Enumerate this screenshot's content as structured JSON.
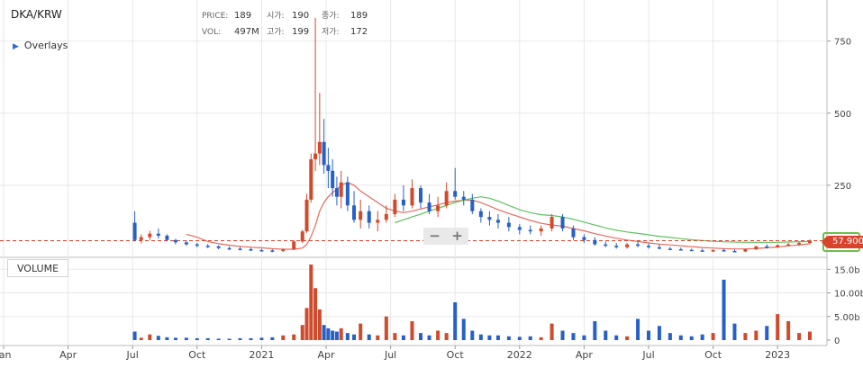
{
  "header": {
    "pair": "DKA/KRW",
    "overlays_label": "Overlays",
    "info": {
      "price_label": "PRICE:",
      "price": "189",
      "vol_label": "VOL:",
      "vol": "497M",
      "open_label": "시가:",
      "open": "190",
      "high_label": "고가:",
      "high": "199",
      "close_label": "종가:",
      "close": "189",
      "low_label": "저가:",
      "low": "172"
    }
  },
  "controls": {
    "zoom_out": "−",
    "zoom_in": "+"
  },
  "volume_panel": {
    "label": "VOLUME"
  },
  "current_price": {
    "label": "57.900",
    "value": 57.9
  },
  "colors": {
    "up": "#d04a2c",
    "down": "#2760c6",
    "ma_short": "#e86a5c",
    "ma_long": "#5cc45c",
    "last_price_line": "#d9432c",
    "grid": "#e8e8e8",
    "tag_border": "#6cc04a"
  },
  "chart_data": {
    "type": "candlestick",
    "price_axis": {
      "ticks": [
        250,
        500,
        750
      ],
      "labels": [
        "250",
        "500",
        "750"
      ],
      "range": [
        0,
        830
      ]
    },
    "volume_axis": {
      "ticks": [
        0,
        5,
        10,
        15
      ],
      "labels": [
        "0",
        "5.00b",
        "10.00b",
        "15.0b"
      ],
      "range": [
        0,
        16
      ],
      "unit": "b"
    },
    "time_axis": {
      "labels": [
        "Jan",
        "Apr",
        "Jul",
        "Oct",
        "2021",
        "Apr",
        "Jul",
        "Oct",
        "2022",
        "Apr",
        "Jul",
        "Oct",
        "2023"
      ],
      "months_from_jan_2020": [
        0,
        3,
        6,
        9,
        12,
        15,
        18,
        21,
        24,
        27,
        30,
        33,
        36
      ]
    },
    "ohlc_months_from_jan_2020": [
      6.1,
      6.4,
      6.8,
      7.2,
      7.6,
      8.0,
      8.5,
      9,
      9.5,
      10,
      10.5,
      11,
      11.5,
      12,
      12.5,
      13,
      13.5,
      13.9,
      14.1,
      14.3,
      14.5,
      14.7,
      14.9,
      15.1,
      15.3,
      15.5,
      15.7,
      16,
      16.3,
      16.6,
      17,
      17.4,
      17.8,
      18.2,
      18.6,
      19,
      19.4,
      19.8,
      20.2,
      20.6,
      21,
      21.4,
      21.8,
      22.2,
      22.6,
      23,
      23.5,
      24,
      24.5,
      25,
      25.5,
      26,
      26.5,
      27,
      27.5,
      28,
      28.5,
      29,
      29.5,
      30,
      30.5,
      31,
      31.5,
      32,
      32.5,
      33,
      33.5,
      34,
      34.5,
      35,
      35.5,
      36,
      36.5,
      37,
      37.5
    ],
    "ohlc": [
      [
        120,
        160,
        55,
        60
      ],
      [
        60,
        80,
        48,
        70
      ],
      [
        70,
        92,
        60,
        82
      ],
      [
        82,
        100,
        65,
        75
      ],
      [
        75,
        80,
        55,
        60
      ],
      [
        60,
        64,
        45,
        52
      ],
      [
        52,
        58,
        40,
        45
      ],
      [
        45,
        50,
        35,
        40
      ],
      [
        40,
        46,
        32,
        38
      ],
      [
        38,
        42,
        28,
        32
      ],
      [
        32,
        38,
        25,
        30
      ],
      [
        30,
        36,
        24,
        28
      ],
      [
        28,
        34,
        22,
        25
      ],
      [
        25,
        30,
        20,
        24
      ],
      [
        24,
        28,
        18,
        22
      ],
      [
        22,
        30,
        18,
        28
      ],
      [
        28,
        60,
        25,
        55
      ],
      [
        55,
        95,
        50,
        90
      ],
      [
        90,
        220,
        85,
        200
      ],
      [
        200,
        360,
        190,
        340
      ],
      [
        340,
        830,
        300,
        360
      ],
      [
        360,
        570,
        320,
        400
      ],
      [
        400,
        480,
        290,
        320
      ],
      [
        320,
        380,
        240,
        300
      ],
      [
        300,
        340,
        210,
        240
      ],
      [
        240,
        280,
        180,
        210
      ],
      [
        210,
        300,
        170,
        260
      ],
      [
        260,
        280,
        160,
        180
      ],
      [
        180,
        230,
        120,
        130
      ],
      [
        130,
        200,
        100,
        160
      ],
      [
        160,
        180,
        100,
        120
      ],
      [
        120,
        160,
        90,
        130
      ],
      [
        130,
        180,
        120,
        150
      ],
      [
        150,
        220,
        140,
        200
      ],
      [
        200,
        250,
        160,
        180
      ],
      [
        180,
        270,
        170,
        240
      ],
      [
        240,
        250,
        170,
        190
      ],
      [
        190,
        220,
        150,
        160
      ],
      [
        160,
        210,
        140,
        180
      ],
      [
        180,
        260,
        170,
        230
      ],
      [
        230,
        310,
        200,
        210
      ],
      [
        210,
        230,
        180,
        200
      ],
      [
        200,
        220,
        150,
        160
      ],
      [
        160,
        170,
        120,
        140
      ],
      [
        140,
        160,
        110,
        130
      ],
      [
        130,
        150,
        100,
        120
      ],
      [
        120,
        140,
        90,
        105
      ],
      [
        105,
        115,
        80,
        95
      ],
      [
        95,
        110,
        80,
        90
      ],
      [
        90,
        110,
        75,
        100
      ],
      [
        100,
        150,
        90,
        140
      ],
      [
        140,
        150,
        90,
        100
      ],
      [
        100,
        110,
        60,
        70
      ],
      [
        70,
        80,
        50,
        60
      ],
      [
        60,
        70,
        40,
        45
      ],
      [
        45,
        55,
        35,
        40
      ],
      [
        40,
        50,
        30,
        35
      ],
      [
        35,
        50,
        30,
        45
      ],
      [
        45,
        55,
        35,
        40
      ],
      [
        40,
        48,
        30,
        35
      ],
      [
        35,
        45,
        28,
        30
      ],
      [
        30,
        36,
        25,
        28
      ],
      [
        28,
        34,
        24,
        26
      ],
      [
        26,
        30,
        22,
        24
      ],
      [
        24,
        30,
        20,
        22
      ],
      [
        22,
        28,
        18,
        25
      ],
      [
        25,
        30,
        20,
        22
      ],
      [
        22,
        28,
        18,
        20
      ],
      [
        20,
        30,
        18,
        28
      ],
      [
        28,
        40,
        25,
        38
      ],
      [
        38,
        45,
        30,
        35
      ],
      [
        35,
        45,
        32,
        42
      ],
      [
        42,
        50,
        38,
        45
      ],
      [
        45,
        55,
        40,
        50
      ],
      [
        50,
        62,
        45,
        58
      ]
    ],
    "ma_short": [
      null,
      null,
      null,
      null,
      null,
      null,
      80,
      70,
      55,
      47,
      42,
      38,
      35,
      33,
      30,
      28,
      28,
      32,
      45,
      72,
      110,
      160,
      190,
      210,
      225,
      235,
      250,
      260,
      250,
      230,
      210,
      190,
      170,
      160,
      155,
      160,
      168,
      175,
      182,
      190,
      195,
      198,
      198,
      190,
      178,
      165,
      152,
      140,
      128,
      118,
      112,
      108,
      100,
      92,
      82,
      74,
      66,
      60,
      55,
      50,
      46,
      43,
      40,
      37,
      34,
      32,
      30,
      29,
      29,
      31,
      33,
      36,
      40,
      43,
      47
    ],
    "ma_long": [
      null,
      null,
      null,
      null,
      null,
      null,
      null,
      null,
      null,
      null,
      null,
      null,
      null,
      null,
      null,
      null,
      null,
      null,
      null,
      null,
      null,
      null,
      null,
      null,
      null,
      null,
      null,
      null,
      null,
      null,
      null,
      null,
      null,
      120,
      130,
      140,
      150,
      160,
      170,
      180,
      190,
      198,
      205,
      210,
      205,
      195,
      180,
      165,
      155,
      148,
      145,
      140,
      132,
      122,
      112,
      102,
      94,
      88,
      83,
      78,
      73,
      69,
      65,
      61,
      58,
      56,
      54,
      53,
      52,
      52,
      52,
      52,
      53,
      54,
      55
    ],
    "volume": [
      1.8,
      0.5,
      1.2,
      0.9,
      0.6,
      0.5,
      0.5,
      0.4,
      0.4,
      0.3,
      0.3,
      0.4,
      0.4,
      0.5,
      0.6,
      1.0,
      1.2,
      3.2,
      6.8,
      16.0,
      11.0,
      6.5,
      3.2,
      2.5,
      2.0,
      1.8,
      2.5,
      1.5,
      1.2,
      3.5,
      1.2,
      1.0,
      5.0,
      1.5,
      1.0,
      4.0,
      1.5,
      1.0,
      2.0,
      1.5,
      8.0,
      4.5,
      2.0,
      1.2,
      1.0,
      1.0,
      0.8,
      0.7,
      0.8,
      0.6,
      3.5,
      2.0,
      1.5,
      1.0,
      4.0,
      2.0,
      1.0,
      0.8,
      4.5,
      2.0,
      3.0,
      1.5,
      1.0,
      0.8,
      1.2,
      1.5,
      12.8,
      3.5,
      1.5,
      2.0,
      3.0,
      5.5,
      4.0,
      1.5,
      1.8
    ]
  }
}
